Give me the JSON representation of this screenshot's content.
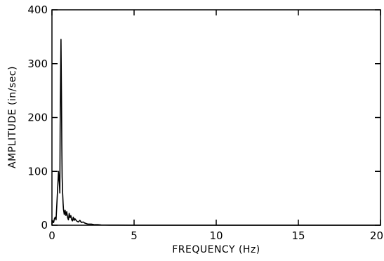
{
  "chart_data": {
    "type": "line",
    "title": "",
    "xlabel": "FREQUENCY (Hz)",
    "ylabel": "AMPLITUDE (in/sec)",
    "xlim": [
      0,
      20
    ],
    "ylim": [
      0,
      400
    ],
    "xticks": [
      0,
      5,
      10,
      15,
      20
    ],
    "yticks": [
      0,
      100,
      200,
      300,
      400
    ],
    "grid": false,
    "colors": {
      "line": "#000000",
      "axes": "#000000"
    },
    "series": [
      {
        "x": [
          0,
          0.05,
          0.1,
          0.15,
          0.2,
          0.25,
          0.3,
          0.35,
          0.4,
          0.45,
          0.48,
          0.5,
          0.52,
          0.55,
          0.58,
          0.6,
          0.62,
          0.65,
          0.68,
          0.7,
          0.75,
          0.8,
          0.85,
          0.9,
          0.95,
          1.0,
          1.05,
          1.1,
          1.15,
          1.2,
          1.25,
          1.3,
          1.35,
          1.4,
          1.5,
          1.6,
          1.7,
          1.8,
          1.9,
          2.0,
          2.1,
          2.2,
          2.4,
          2.6,
          2.8,
          3.0,
          3.5,
          4.0,
          5.0,
          6.0,
          8.0,
          10.0,
          12.0,
          15.0,
          18.0,
          20.0
        ],
        "y": [
          2,
          8,
          5,
          12,
          15,
          10,
          40,
          70,
          100,
          80,
          60,
          180,
          250,
          345,
          240,
          150,
          90,
          60,
          40,
          30,
          20,
          28,
          18,
          25,
          15,
          10,
          22,
          14,
          18,
          10,
          8,
          15,
          9,
          12,
          8,
          6,
          9,
          5,
          6,
          4,
          3,
          2,
          2,
          1,
          1,
          0.5,
          0.3,
          0.2,
          0,
          0,
          0,
          0,
          0,
          0,
          0,
          0
        ]
      }
    ]
  }
}
